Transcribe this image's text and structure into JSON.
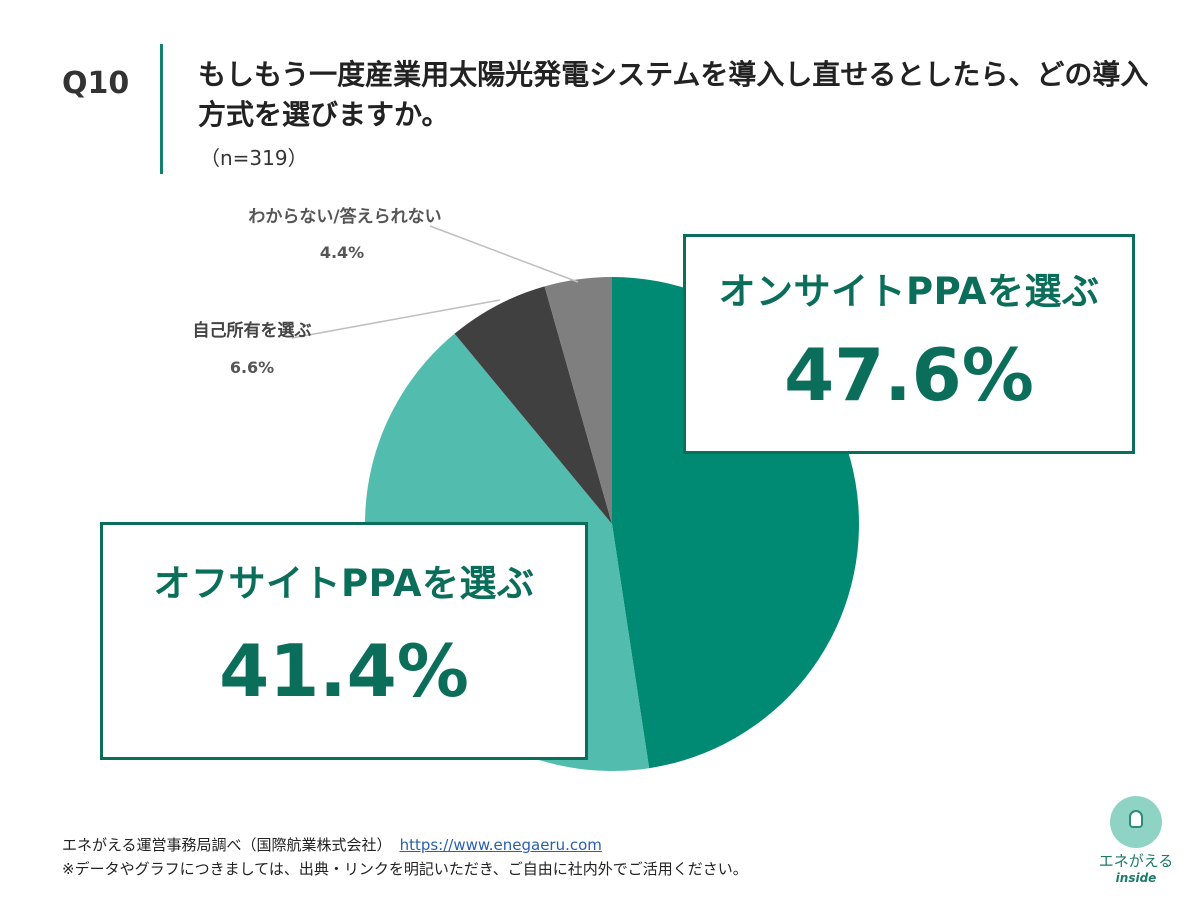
{
  "header": {
    "question_label": "Q10",
    "question_text": "もしもう一度産業用太陽光発電システムを導入し直せるとしたら、どの導入方式を選びますか。",
    "sample_size": "（n=319）"
  },
  "chart_data": {
    "type": "pie",
    "categories": [
      "オンサイトPPAを選ぶ",
      "オフサイトPPAを選ぶ",
      "自己所有を選ぶ",
      "わからない/答えられない"
    ],
    "values": [
      47.6,
      41.4,
      6.6,
      4.4
    ],
    "value_labels": [
      "47.6%",
      "41.4%",
      "6.6%",
      "4.4%"
    ],
    "colors": [
      "#008a73",
      "#52bcae",
      "#404040",
      "#7f7f7f"
    ],
    "start": "12 o'clock, clockwise"
  },
  "footer": {
    "source_text": "エネがえる運営事務局調べ（国際航業株式会社）",
    "source_link": "https://www.enegaeru.com",
    "note": "※データやグラフにつきましては、出典・リンクを明記いただき、ご自由に社内外でご活用ください。"
  },
  "logo": {
    "brand": "エネがえる",
    "sub": "inside"
  }
}
